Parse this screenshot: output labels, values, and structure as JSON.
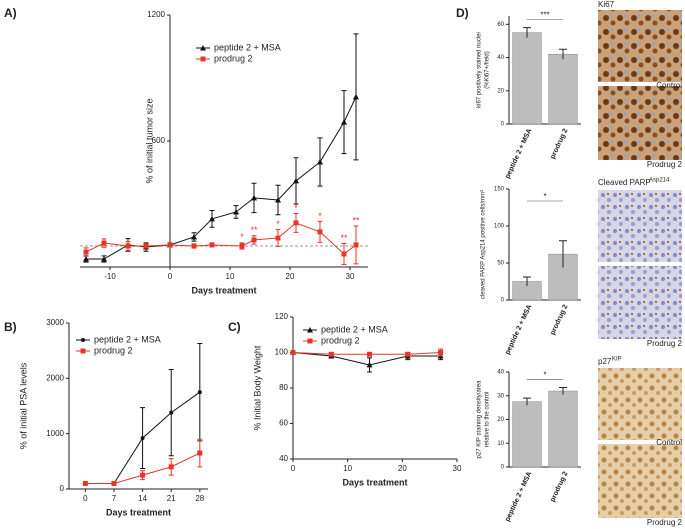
{
  "panel_labels": [
    "A)",
    "B)",
    "C)",
    "D)"
  ],
  "micrographs": [
    {
      "label": "Ki67",
      "caption": "Control"
    },
    {
      "caption": "Prodrug 2"
    },
    {
      "label": "Cleaved PARP",
      "label_sup": "Asp214"
    },
    {
      "caption": "Prodrug 2"
    },
    {
      "label": "p27",
      "label_sup": "KIP",
      "caption": "Control"
    },
    {
      "caption": "Prodrug 2"
    }
  ],
  "chart_data": [
    {
      "type": "line",
      "ylabel": "% of initial tumor size",
      "xlabel": "Days treatment",
      "xlim": [
        -15,
        33
      ],
      "xticks": [
        -10,
        0,
        10,
        20,
        30
      ],
      "ylim": [
        0,
        1200
      ],
      "yticks": [
        600,
        1200
      ],
      "y_axis_at_x": 0,
      "reference": 100,
      "legend": "upper left",
      "series": [
        {
          "name": "peptide 2 + MSA",
          "color": "#111111",
          "marker": "triangle",
          "x": [
            -14,
            -11,
            -7,
            -4,
            0,
            4,
            7,
            11,
            14,
            18,
            21,
            25,
            29,
            31
          ],
          "values": [
            38,
            38,
            105,
            95,
            105,
            143,
            229,
            262,
            329,
            319,
            410,
            500,
            690,
            810
          ],
          "errors": [
            15,
            15,
            30,
            20,
            10,
            20,
            40,
            30,
            70,
            70,
            110,
            115,
            150,
            300
          ]
        },
        {
          "name": "prodrug 2",
          "color": "#e8352a",
          "marker": "square",
          "x": [
            -14,
            -11,
            -7,
            -4,
            0,
            4,
            7,
            12,
            14,
            18,
            21,
            25,
            29,
            31
          ],
          "values": [
            71,
            114,
            100,
            100,
            105,
            100,
            105,
            100,
            129,
            138,
            210,
            167,
            62,
            105
          ],
          "errors": [
            20,
            20,
            20,
            10,
            10,
            10,
            10,
            15,
            20,
            40,
            45,
            50,
            50,
            90
          ],
          "significance": [
            null,
            null,
            null,
            null,
            null,
            null,
            null,
            "*",
            "**",
            "*",
            "*",
            "*",
            "**",
            "**"
          ]
        }
      ]
    },
    {
      "type": "line",
      "ylabel": "% of initial PSA levels",
      "xlabel": "Days treatment",
      "xlim": [
        -4,
        30
      ],
      "xticks": [
        0,
        7,
        14,
        21,
        28
      ],
      "ylim": [
        0,
        3000
      ],
      "yticks": [
        0,
        1000,
        2000,
        3000
      ],
      "legend": "upper left",
      "x": [
        0,
        7,
        14,
        21,
        28
      ],
      "series": [
        {
          "name": "peptide 2 + MSA",
          "color": "#111111",
          "marker": "dot",
          "values": [
            100,
            100,
            920,
            1380,
            1750
          ],
          "errors": [
            0,
            0,
            550,
            780,
            880
          ]
        },
        {
          "name": "prodrug 2",
          "color": "#e8352a",
          "marker": "square",
          "values": [
            100,
            100,
            250,
            400,
            650
          ],
          "errors": [
            0,
            0,
            80,
            150,
            250
          ]
        }
      ]
    },
    {
      "type": "line",
      "ylabel": "% Initial Body Weight",
      "xlabel": "Days treatment",
      "xlim": [
        0,
        30
      ],
      "xticks": [
        0,
        10,
        20,
        30
      ],
      "ylim": [
        40,
        120
      ],
      "yticks": [
        40,
        60,
        80,
        100,
        120
      ],
      "legend": "upper left",
      "x": [
        0,
        7,
        14,
        21,
        27
      ],
      "series": [
        {
          "name": "peptide 2 + MSA",
          "color": "#111111",
          "marker": "triangle",
          "values": [
            100,
            98,
            93,
            98,
            98
          ],
          "errors": [
            0,
            1,
            4,
            2,
            2
          ]
        },
        {
          "name": "prodrug 2",
          "color": "#e8352a",
          "marker": "square",
          "values": [
            100,
            99,
            99,
            99,
            100
          ],
          "errors": [
            0,
            1,
            1,
            1,
            2
          ]
        }
      ]
    },
    {
      "type": "bar",
      "ylabel": [
        "ki67 positively stained nuclei",
        "(%Ki67+/field)"
      ],
      "categories": [
        "peptide 2 + MSA",
        "prodrug 2"
      ],
      "values": [
        55,
        42
      ],
      "errors": [
        3,
        3
      ],
      "color": "#bdbdbd",
      "ylim": [
        0,
        65
      ],
      "yticks": [
        0,
        20,
        40,
        60
      ],
      "significance": "***"
    },
    {
      "type": "bar",
      "ylabel": [
        "cleaved PARP Asp214 positive cells/mm²"
      ],
      "categories": [
        "peptide 2 + MSA",
        "prodrug 2"
      ],
      "values": [
        25,
        62
      ],
      "errors": [
        6,
        18
      ],
      "color": "#bdbdbd",
      "ylim": [
        0,
        150
      ],
      "yticks": [
        0,
        50,
        100,
        150
      ],
      "significance": "*"
    },
    {
      "type": "bar",
      "ylabel": [
        "p27 KIP staining density/area",
        "relative to the control"
      ],
      "categories": [
        "peptide 2 + MSA",
        "prodrug 2"
      ],
      "values": [
        27.5,
        32
      ],
      "errors": [
        1.5,
        1.5
      ],
      "color": "#bdbdbd",
      "ylim": [
        0,
        40
      ],
      "yticks": [
        0,
        10,
        20,
        30,
        40
      ],
      "significance": "*"
    }
  ]
}
